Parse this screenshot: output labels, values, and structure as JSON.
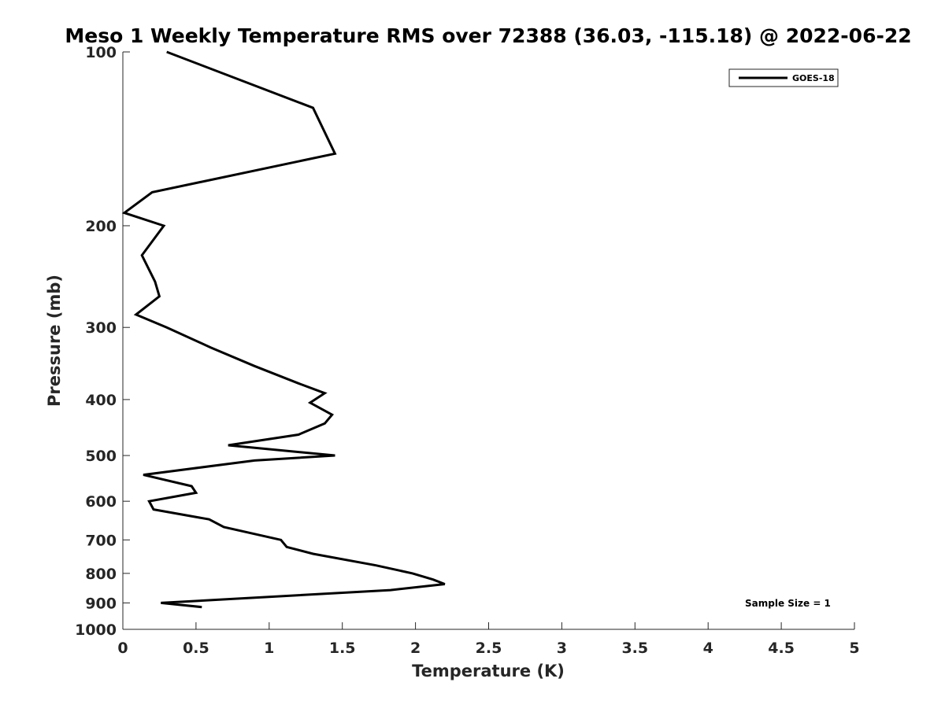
{
  "chart_data": {
    "type": "line",
    "title": "Meso 1 Weekly Temperature RMS over 72388 (36.03, -115.18) @ 2022-06-22",
    "xlabel": "Temperature (K)",
    "ylabel": "Pressure (mb)",
    "xlim": [
      0,
      5
    ],
    "ylim": [
      100,
      1000
    ],
    "y_scale": "log",
    "y_reversed": true,
    "x_ticks": [
      0,
      0.5,
      1,
      1.5,
      2,
      2.5,
      3,
      3.5,
      4,
      4.5,
      5
    ],
    "x_tick_labels": [
      "0",
      "0.5",
      "1",
      "1.5",
      "2",
      "2.5",
      "3",
      "3.5",
      "4",
      "4.5",
      "5"
    ],
    "y_ticks": [
      100,
      200,
      300,
      400,
      500,
      600,
      700,
      800,
      900,
      1000
    ],
    "y_tick_labels": [
      "100",
      "200",
      "300",
      "400",
      "500",
      "600",
      "700",
      "800",
      "900",
      "1000"
    ],
    "grid": false,
    "legend_position": "top-right",
    "series": [
      {
        "name": "GOES-18",
        "color": "#000000",
        "points": [
          [
            0.3,
            100
          ],
          [
            1.3,
            125
          ],
          [
            1.45,
            150
          ],
          [
            0.2,
            175
          ],
          [
            0.01,
            190
          ],
          [
            0.28,
            200
          ],
          [
            0.13,
            225
          ],
          [
            0.22,
            250
          ],
          [
            0.25,
            265
          ],
          [
            0.09,
            285
          ],
          [
            0.3,
            300
          ],
          [
            0.6,
            325
          ],
          [
            0.9,
            350
          ],
          [
            1.2,
            375
          ],
          [
            1.38,
            390
          ],
          [
            1.28,
            405
          ],
          [
            1.43,
            425
          ],
          [
            1.38,
            440
          ],
          [
            1.2,
            460
          ],
          [
            0.72,
            480
          ],
          [
            1.45,
            500
          ],
          [
            0.9,
            510
          ],
          [
            0.14,
            540
          ],
          [
            0.47,
            565
          ],
          [
            0.5,
            580
          ],
          [
            0.18,
            600
          ],
          [
            0.21,
            620
          ],
          [
            0.59,
            645
          ],
          [
            0.69,
            665
          ],
          [
            1.08,
            700
          ],
          [
            1.12,
            720
          ],
          [
            1.3,
            740
          ],
          [
            1.73,
            775
          ],
          [
            1.98,
            800
          ],
          [
            2.12,
            820
          ],
          [
            2.2,
            835
          ],
          [
            1.83,
            855
          ],
          [
            0.26,
            900
          ],
          [
            0.54,
            915
          ]
        ]
      }
    ],
    "annotation": "Sample Size = 1"
  }
}
